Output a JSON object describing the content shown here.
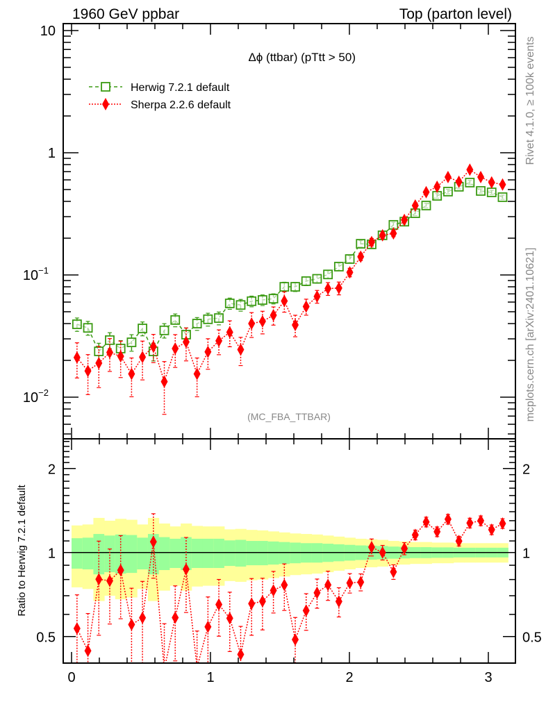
{
  "header": {
    "left": "1960 GeV ppbar",
    "right": "Top (parton level)"
  },
  "side_text": {
    "rivet": "Rivet 4.1.0, ≥ 100k events",
    "mcplots": "mcplots.cern.ch [arXiv:2401.10621]"
  },
  "colors": {
    "herwig": "#3a9a12",
    "sherpa": "#ff0000",
    "band_outer": "#ffff99",
    "band_inner": "#99ff99"
  },
  "chart_data": {
    "type": "line",
    "title": "Δϕ (ttbar) (pTtt > 50)",
    "analysis": "(MC_FBA_TTBAR)",
    "xlim": [
      -0.06,
      3.195
    ],
    "ylim": [
      0.0046,
      11.7
    ],
    "yscale": "log",
    "xticks": [
      "0",
      "1",
      "2",
      "3"
    ],
    "yticks": [
      {
        "base": "10",
        "exp": "",
        "value": 10
      },
      {
        "base": "1",
        "exp": "",
        "value": 1
      },
      {
        "base": "10",
        "exp": "−1",
        "value": 0.1
      },
      {
        "base": "10",
        "exp": "−2",
        "value": 0.01
      }
    ],
    "nbins": 40,
    "xrange": [
      0,
      3.14159
    ],
    "legend_position": "top-left",
    "series": [
      {
        "name": "Herwig 7.2.1 default",
        "marker": "open-square",
        "values": [
          0.0395,
          0.0369,
          0.0237,
          0.0293,
          0.025,
          0.0281,
          0.0365,
          0.0237,
          0.0352,
          0.0428,
          0.0325,
          0.04,
          0.0434,
          0.0444,
          0.0585,
          0.0568,
          0.061,
          0.0624,
          0.064,
          0.08,
          0.08,
          0.089,
          0.093,
          0.101,
          0.117,
          0.135,
          0.18,
          0.178,
          0.211,
          0.257,
          0.273,
          0.32,
          0.37,
          0.444,
          0.481,
          0.527,
          0.57,
          0.487,
          0.474,
          0.433
        ]
      },
      {
        "name": "Sherpa 2.2.6 default",
        "marker": "filled-diamond",
        "values": [
          0.0211,
          0.0164,
          0.019,
          0.0232,
          0.0216,
          0.0155,
          0.0213,
          0.0259,
          0.0134,
          0.025,
          0.0283,
          0.0155,
          0.0235,
          0.0289,
          0.034,
          0.0245,
          0.04,
          0.0417,
          0.0468,
          0.0612,
          0.039,
          0.0551,
          0.0667,
          0.0773,
          0.0781,
          0.105,
          0.141,
          0.186,
          0.211,
          0.219,
          0.282,
          0.37,
          0.476,
          0.527,
          0.633,
          0.579,
          0.727,
          0.633,
          0.572,
          0.55
        ],
        "rel_err": [
          0.32,
          0.36,
          0.37,
          0.3,
          0.33,
          0.35,
          0.35,
          0.26,
          0.46,
          0.3,
          0.3,
          0.35,
          0.28,
          0.23,
          0.24,
          0.26,
          0.23,
          0.21,
          0.17,
          0.19,
          0.2,
          0.15,
          0.12,
          0.12,
          0.12,
          0.08,
          0.07,
          0.07,
          0.06,
          0.06,
          0.05,
          0.04,
          0.04,
          0.04,
          0.04,
          0.04,
          0.04,
          0.04,
          0.04,
          0.04
        ]
      }
    ],
    "ratio": {
      "ylabel": "Ratio to Herwig 7.2.1 default",
      "reference": "Herwig 7.2.1 default",
      "yscale": "log",
      "ylim": [
        0.397,
        2.56
      ],
      "yticks": [
        {
          "label": "2",
          "value": 2
        },
        {
          "label": "1",
          "value": 1
        },
        {
          "label": "0.5",
          "value": 0.5
        }
      ],
      "band_outer_rel": [
        0.25,
        0.26,
        0.33,
        0.3,
        0.32,
        0.31,
        0.26,
        0.33,
        0.27,
        0.24,
        0.27,
        0.245,
        0.24,
        0.24,
        0.21,
        0.215,
        0.205,
        0.2,
        0.19,
        0.18,
        0.17,
        0.165,
        0.16,
        0.15,
        0.14,
        0.13,
        0.12,
        0.115,
        0.11,
        0.1,
        0.095,
        0.09,
        0.09,
        0.085,
        0.085,
        0.08,
        0.08,
        0.08,
        0.08,
        0.08
      ],
      "band_inner_rel": [
        0.125,
        0.13,
        0.165,
        0.15,
        0.16,
        0.155,
        0.13,
        0.165,
        0.135,
        0.12,
        0.135,
        0.12,
        0.12,
        0.12,
        0.105,
        0.11,
        0.1,
        0.1,
        0.095,
        0.09,
        0.085,
        0.08,
        0.08,
        0.075,
        0.07,
        0.065,
        0.06,
        0.058,
        0.055,
        0.05,
        0.048,
        0.045,
        0.045,
        0.043,
        0.043,
        0.04,
        0.04,
        0.04,
        0.04,
        0.04
      ]
    }
  }
}
